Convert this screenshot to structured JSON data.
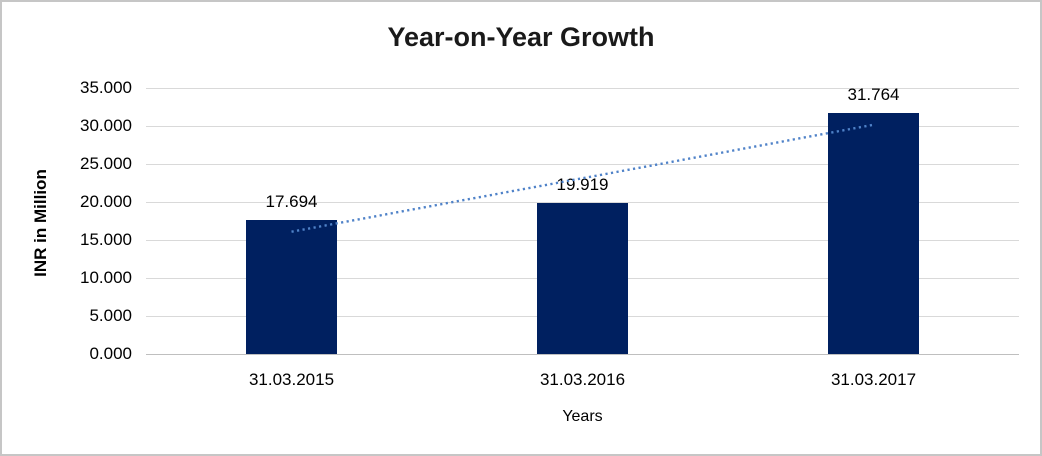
{
  "chart_data": {
    "type": "bar",
    "title": "Year-on-Year Growth",
    "xlabel": "Years",
    "ylabel": "INR in Million",
    "categories": [
      "31.03.2015",
      "31.03.2016",
      "31.03.2017"
    ],
    "series": [
      {
        "name": "INR in Million",
        "values": [
          17.694,
          19.919,
          31.764
        ],
        "value_labels": [
          "17.694",
          "19.919",
          "31.764"
        ]
      }
    ],
    "ylim": [
      0,
      35
    ],
    "ytick_step": 5,
    "ytick_labels": [
      "0.000",
      "5.000",
      "10.000",
      "15.000",
      "20.000",
      "25.000",
      "30.000",
      "35.000"
    ],
    "grid": true,
    "legend_position": "none",
    "trendline": {
      "type": "linear",
      "style": "dotted"
    },
    "colors": {
      "bar": "#002060",
      "trendline": "#4f82c8",
      "gridline": "#d9d9d9",
      "axis_line": "#bfbfbf",
      "text": "#000000",
      "title": "#1a1a1a",
      "frame_border": "#c6c6c6",
      "background": "#ffffff"
    }
  }
}
